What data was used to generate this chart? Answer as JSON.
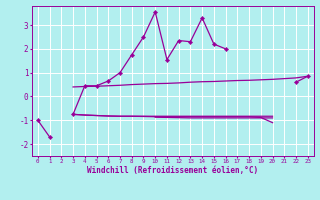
{
  "hours": [
    0,
    1,
    2,
    3,
    4,
    5,
    6,
    7,
    8,
    9,
    10,
    11,
    12,
    13,
    14,
    15,
    16,
    17,
    18,
    19,
    20,
    21,
    22,
    23
  ],
  "line_main": [
    -1.0,
    -1.7,
    null,
    -0.75,
    0.45,
    0.45,
    0.65,
    1.0,
    1.75,
    2.5,
    3.55,
    1.55,
    2.35,
    2.3,
    3.3,
    2.2,
    2.0,
    null,
    null,
    null,
    null,
    null,
    0.6,
    0.85
  ],
  "line_upper": [
    null,
    null,
    null,
    0.4,
    0.42,
    0.43,
    0.45,
    0.47,
    0.5,
    0.52,
    0.54,
    0.55,
    0.57,
    0.6,
    0.62,
    0.63,
    0.65,
    0.67,
    0.68,
    0.7,
    0.72,
    0.75,
    0.78,
    0.85
  ],
  "line_lower1": [
    null,
    null,
    null,
    -0.75,
    -0.78,
    -0.8,
    -0.82,
    -0.83,
    -0.83,
    -0.83,
    -0.83,
    -0.83,
    -0.83,
    -0.83,
    -0.83,
    -0.83,
    -0.83,
    -0.83,
    -0.83,
    -0.83,
    -0.83,
    null,
    null,
    null
  ],
  "line_lower2": [
    null,
    null,
    null,
    -0.75,
    -0.78,
    -0.8,
    -0.82,
    -0.83,
    -0.83,
    -0.84,
    -0.85,
    -0.85,
    -0.85,
    -0.85,
    -0.85,
    -0.85,
    -0.85,
    -0.85,
    -0.85,
    -0.88,
    -1.1,
    null,
    null,
    null
  ],
  "line_lower3": [
    null,
    null,
    null,
    null,
    null,
    null,
    null,
    null,
    null,
    null,
    -0.87,
    -0.88,
    -0.89,
    -0.9,
    -0.9,
    -0.9,
    -0.9,
    -0.9,
    -0.9,
    -0.9,
    -0.9,
    null,
    null,
    null
  ],
  "bg_color": "#b2efef",
  "line_color": "#990099",
  "grid_color": "#ffffff",
  "xlabel": "Windchill (Refroidissement éolien,°C)",
  "ylim": [
    -2.5,
    3.8
  ],
  "xlim": [
    -0.5,
    23.5
  ],
  "yticks": [
    -2,
    -1,
    0,
    1,
    2,
    3
  ],
  "xticks": [
    0,
    1,
    2,
    3,
    4,
    5,
    6,
    7,
    8,
    9,
    10,
    11,
    12,
    13,
    14,
    15,
    16,
    17,
    18,
    19,
    20,
    21,
    22,
    23
  ],
  "figsize": [
    3.2,
    2.0
  ],
  "dpi": 100
}
